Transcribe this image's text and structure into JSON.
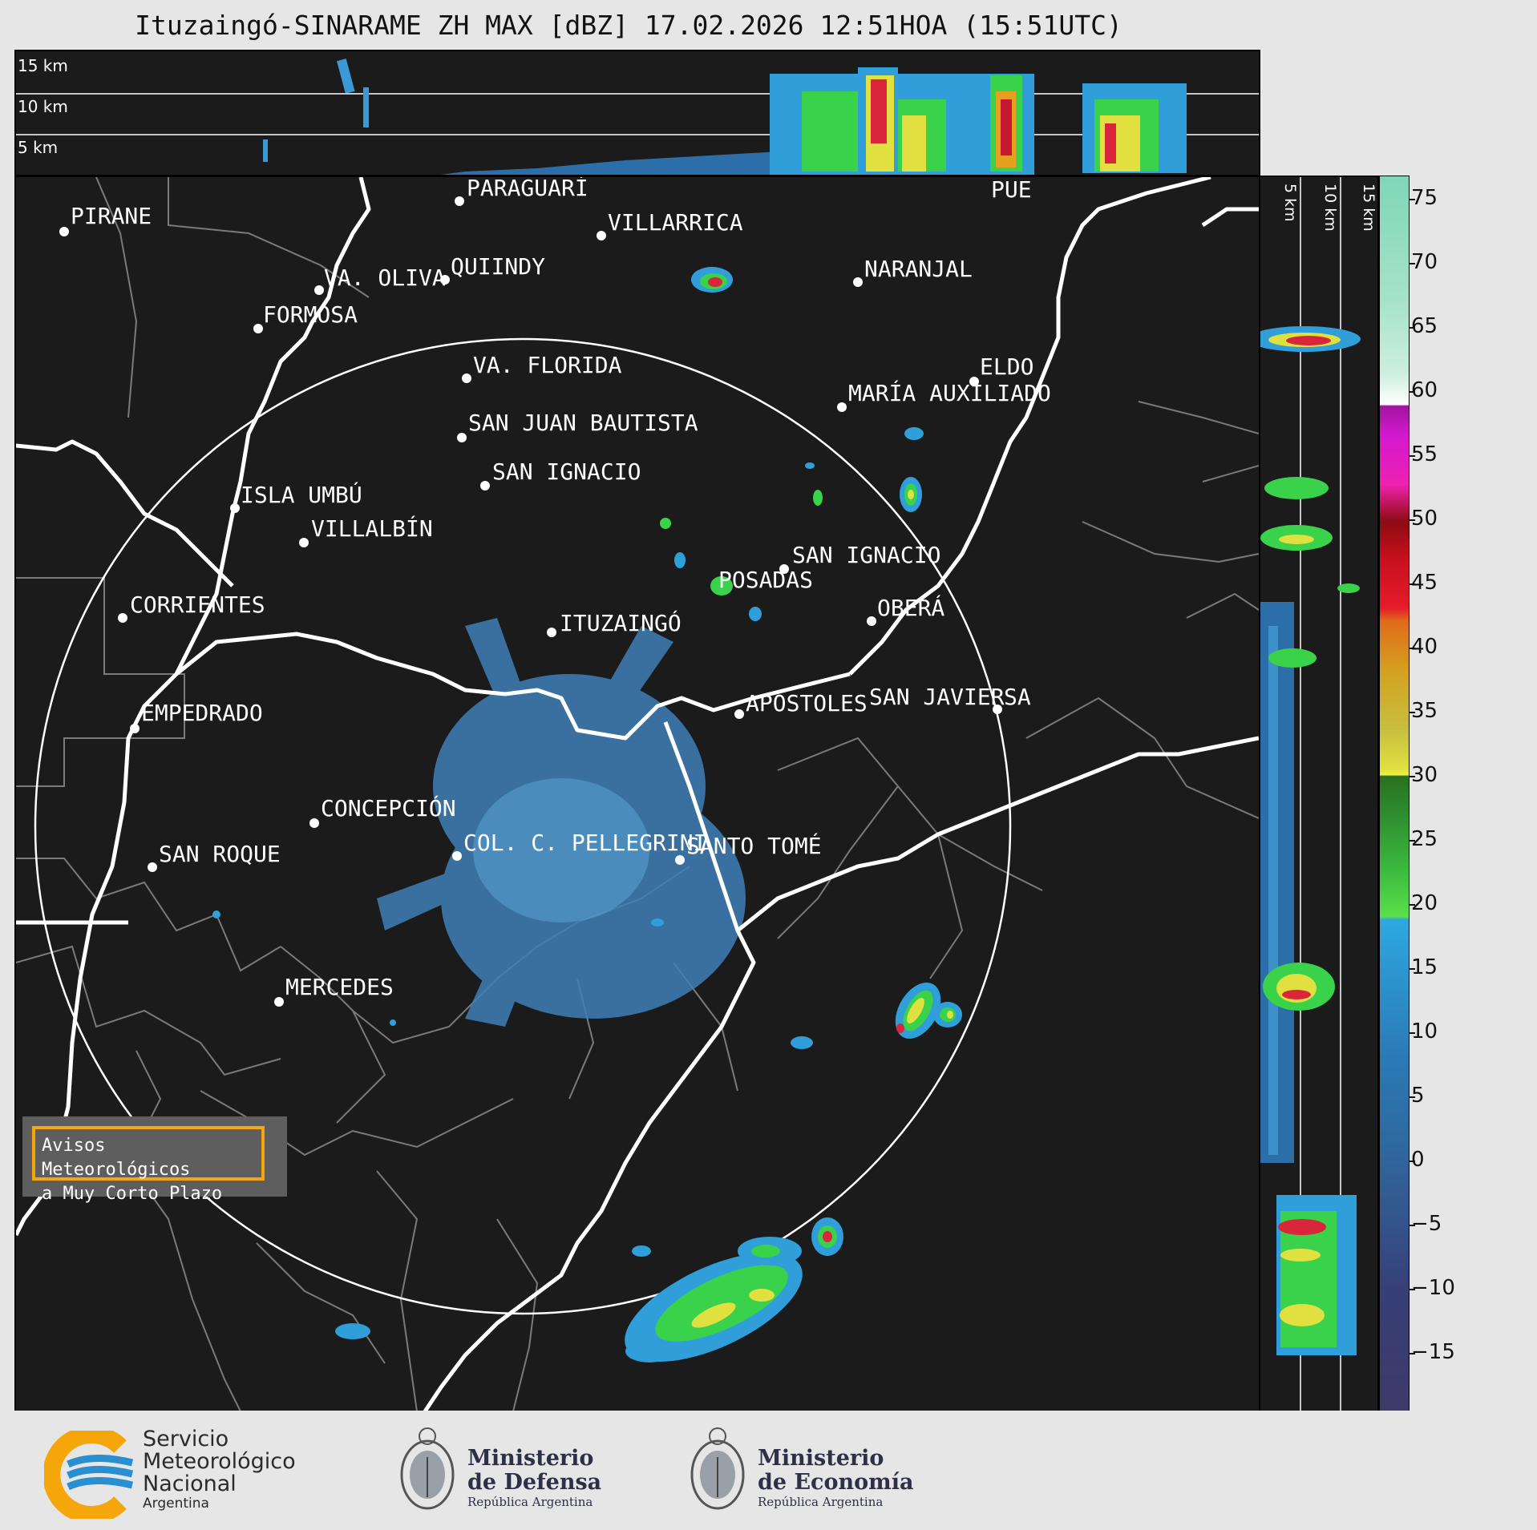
{
  "title": "Ituzaingó-SINARAME ZH MAX [dBZ] 17.02.2026 12:51HOA (15:51UTC)",
  "top_panel": {
    "height_labels": [
      "15 km",
      "10 km",
      "5 km"
    ]
  },
  "side_panel": {
    "height_labels": [
      "5 km",
      "10 km",
      "15 km"
    ]
  },
  "colorbar": {
    "ticks": [
      "75",
      "70",
      "65",
      "60",
      "55",
      "50",
      "45",
      "40",
      "35",
      "30",
      "25",
      "20",
      "15",
      "10",
      "5",
      "0",
      "−5",
      "−10",
      "−15"
    ],
    "range": [
      -20,
      77
    ]
  },
  "cities": [
    {
      "name": "PARAGUARÍ"
    },
    {
      "name": "VILLARRICA"
    },
    {
      "name": "PIRANE"
    },
    {
      "name": "QUIINDY"
    },
    {
      "name": "VA. OLIVA"
    },
    {
      "name": "NARANJAL"
    },
    {
      "name": "FORMOSA"
    },
    {
      "name": "PUE"
    },
    {
      "name": "VA. FLORIDA"
    },
    {
      "name": "ELDO"
    },
    {
      "name": "MARÍA AUXILIADO"
    },
    {
      "name": "SAN JUAN BAUTISTA"
    },
    {
      "name": "SAN IGNACIO"
    },
    {
      "name": "ISLA UMBÚ"
    },
    {
      "name": "VILLALBÍN"
    },
    {
      "name": "SAN IGNACIO"
    },
    {
      "name": "POSADAS"
    },
    {
      "name": "CORRIENTES"
    },
    {
      "name": "ITUZAINGÓ"
    },
    {
      "name": "OBERÁ"
    },
    {
      "name": "APÓSTOLES"
    },
    {
      "name": "SAN JAVIER"
    },
    {
      "name": "SA"
    },
    {
      "name": "EMPEDRADO"
    },
    {
      "name": "CONCEPCIÓN"
    },
    {
      "name": "COL. C. PELLEGRINI"
    },
    {
      "name": "SANTO TOMÉ"
    },
    {
      "name": "SAN ROQUE"
    },
    {
      "name": "MERCEDES"
    }
  ],
  "avisos": {
    "line1": "Avisos Meteorológicos",
    "line2": "a Muy Corto Plazo"
  },
  "logos": {
    "smn": {
      "line1": "Servicio",
      "line2": "Meteorológico",
      "line3": "Nacional",
      "line4": "Argentina"
    },
    "defensa": {
      "line1": "Ministerio",
      "line2": "de Defensa",
      "sub": "República Argentina"
    },
    "economia": {
      "line1": "Ministerio",
      "line2": "de Economía",
      "sub": "República Argentina"
    }
  },
  "colors": {
    "background": "#1b1b1b",
    "border": "#ffffff",
    "range_ring": "#ffffff",
    "avisos_border": "#f5a60a",
    "smn_orange": "#f5a60a",
    "smn_blue": "#2a8fd0"
  }
}
